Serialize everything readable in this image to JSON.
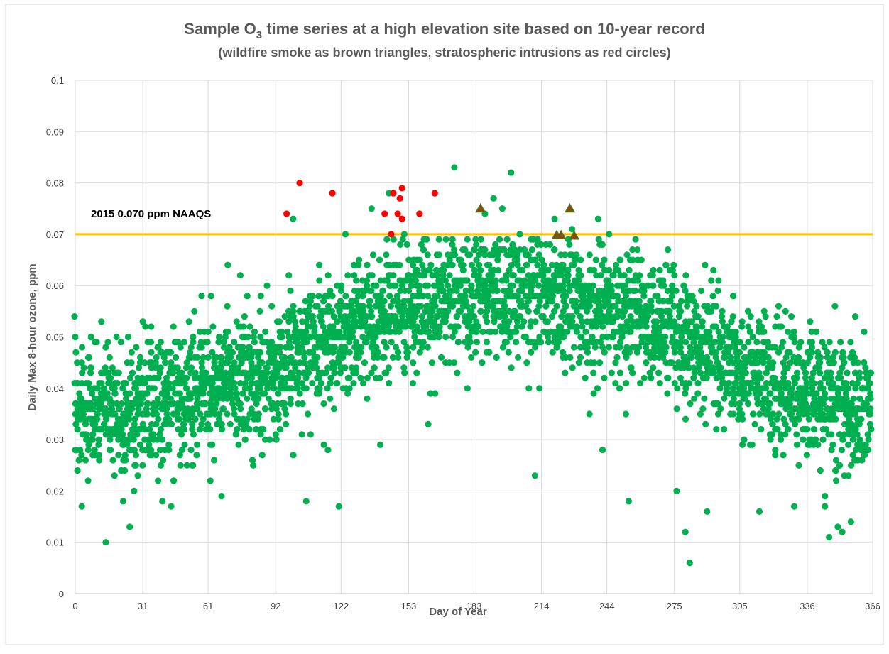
{
  "chart_data": {
    "type": "scatter",
    "title_main": "Sample O",
    "title_sub": "3",
    "title_rest": " time series at a high elevation site based on 10-year record",
    "subtitle": "(wildfire smoke as brown triangles, stratospheric intrusions as red circles)",
    "xlabel": "Day of Year",
    "ylabel": "Daily Max 8-hour ozone, ppm",
    "xlim": [
      0,
      366
    ],
    "ylim": [
      0,
      0.1
    ],
    "x_ticks": [
      0,
      31,
      61,
      92,
      122,
      153,
      183,
      214,
      244,
      275,
      305,
      336,
      366
    ],
    "y_ticks": [
      0,
      0.01,
      0.02,
      0.03,
      0.04,
      0.05,
      0.06,
      0.07,
      0.08,
      0.09,
      0.1
    ],
    "y_tick_labels": [
      "0",
      "0.01",
      "0.02",
      "0.03",
      "0.04",
      "0.05",
      "0.06",
      "0.07",
      "0.08",
      "0.09",
      "0.1"
    ],
    "grid": true,
    "colors": {
      "ozone": "#00b050",
      "stratospheric": "#ff0000",
      "wildfire": "#8b4a14",
      "wildfire_edge": "#4a7a1a",
      "naaqs": "#ffc000",
      "grid": "#d9d9d9",
      "text": "#404040",
      "title": "#595959"
    },
    "reference_line": {
      "label": "2015 0.070 ppm NAAQS",
      "y": 0.07
    },
    "series": [
      {
        "marker": "circle",
        "points_sample": [
          [
            0,
            0.05
          ],
          [
            1,
            0.024
          ],
          [
            3,
            0.017
          ],
          [
            6,
            0.03
          ],
          [
            12,
            0.053
          ],
          [
            14,
            0.01
          ],
          [
            18,
            0.023
          ],
          [
            22,
            0.018
          ],
          [
            25,
            0.013
          ],
          [
            27,
            0.02
          ],
          [
            31,
            0.053
          ],
          [
            35,
            0.045
          ],
          [
            38,
            0.022
          ],
          [
            40,
            0.018
          ],
          [
            44,
            0.017
          ],
          [
            47,
            0.044
          ],
          [
            50,
            0.049
          ],
          [
            54,
            0.025
          ],
          [
            58,
            0.058
          ],
          [
            62,
            0.022
          ],
          [
            66,
            0.05
          ],
          [
            70,
            0.064
          ],
          [
            76,
            0.052
          ],
          [
            82,
            0.047
          ],
          [
            88,
            0.06
          ],
          [
            92,
            0.031
          ],
          [
            94,
            0.032
          ],
          [
            98,
            0.062
          ],
          [
            100,
            0.073
          ],
          [
            104,
            0.031
          ],
          [
            106,
            0.018
          ],
          [
            108,
            0.031
          ],
          [
            112,
            0.064
          ],
          [
            116,
            0.028
          ],
          [
            118,
            0.058
          ],
          [
            121,
            0.017
          ],
          [
            124,
            0.07
          ],
          [
            128,
            0.062
          ],
          [
            132,
            0.055
          ],
          [
            136,
            0.075
          ],
          [
            140,
            0.029
          ],
          [
            144,
            0.078
          ],
          [
            147,
            0.06
          ],
          [
            151,
            0.07
          ],
          [
            155,
            0.058
          ],
          [
            158,
            0.074
          ],
          [
            162,
            0.033
          ],
          [
            166,
            0.066
          ],
          [
            170,
            0.045
          ],
          [
            174,
            0.083
          ],
          [
            180,
            0.04
          ],
          [
            184,
            0.062
          ],
          [
            188,
            0.074
          ],
          [
            192,
            0.077
          ],
          [
            196,
            0.075
          ],
          [
            200,
            0.082
          ],
          [
            204,
            0.07
          ],
          [
            208,
            0.066
          ],
          [
            211,
            0.023
          ],
          [
            216,
            0.068
          ],
          [
            220,
            0.073
          ],
          [
            224,
            0.055
          ],
          [
            228,
            0.071
          ],
          [
            232,
            0.062
          ],
          [
            236,
            0.035
          ],
          [
            240,
            0.073
          ],
          [
            242,
            0.028
          ],
          [
            245,
            0.07
          ],
          [
            250,
            0.065
          ],
          [
            254,
            0.018
          ],
          [
            258,
            0.067
          ],
          [
            262,
            0.045
          ],
          [
            268,
            0.055
          ],
          [
            272,
            0.067
          ],
          [
            276,
            0.02
          ],
          [
            280,
            0.012
          ],
          [
            282,
            0.006
          ],
          [
            285,
            0.054
          ],
          [
            290,
            0.016
          ],
          [
            296,
            0.048
          ],
          [
            302,
            0.058
          ],
          [
            306,
            0.035
          ],
          [
            310,
            0.054
          ],
          [
            314,
            0.016
          ],
          [
            318,
            0.046
          ],
          [
            322,
            0.054
          ],
          [
            326,
            0.055
          ],
          [
            330,
            0.017
          ],
          [
            334,
            0.03
          ],
          [
            338,
            0.051
          ],
          [
            342,
            0.04
          ],
          [
            346,
            0.011
          ],
          [
            350,
            0.013
          ],
          [
            352,
            0.012
          ],
          [
            356,
            0.014
          ],
          [
            358,
            0.054
          ],
          [
            362,
            0.045
          ],
          [
            365,
            0.036
          ]
        ]
      },
      {
        "marker": "circle",
        "points": [
          [
            97,
            0.074
          ],
          [
            103,
            0.08
          ],
          [
            118,
            0.078
          ],
          [
            142,
            0.074
          ],
          [
            145,
            0.07
          ],
          [
            146,
            0.078
          ],
          [
            148,
            0.074
          ],
          [
            149,
            0.077
          ],
          [
            150,
            0.079
          ],
          [
            150,
            0.073
          ],
          [
            158,
            0.074
          ],
          [
            165,
            0.078
          ]
        ]
      },
      {
        "marker": "triangle",
        "points": [
          [
            186,
            0.075
          ],
          [
            221,
            0.0698
          ],
          [
            223,
            0.0698
          ],
          [
            227,
            0.075
          ],
          [
            229,
            0.0697
          ]
        ]
      }
    ]
  }
}
